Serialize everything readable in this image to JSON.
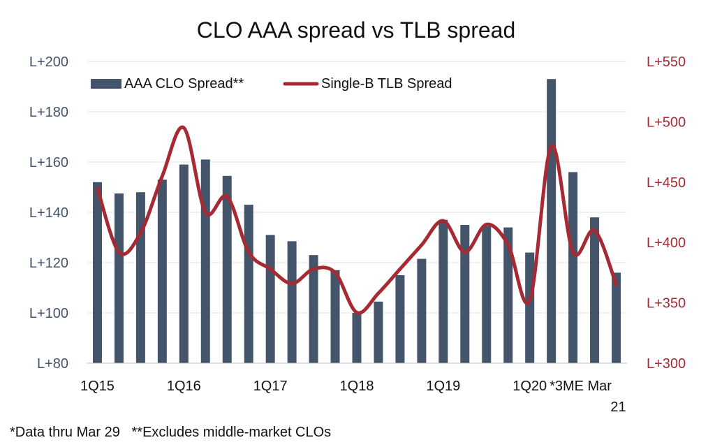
{
  "chart_data": {
    "type": "bar",
    "title": "CLO AAA spread vs TLB spread",
    "x": [
      "1Q15",
      "2Q15",
      "3Q15",
      "4Q15",
      "1Q16",
      "2Q16",
      "3Q16",
      "4Q16",
      "1Q17",
      "2Q17",
      "3Q17",
      "4Q17",
      "1Q18",
      "2Q18",
      "3Q18",
      "4Q18",
      "1Q19",
      "2Q19",
      "3Q19",
      "4Q19",
      "1Q20",
      "2Q20",
      "3Q20",
      "4Q20",
      "*3ME Mar 21"
    ],
    "x_tick_labels": [
      {
        "index": 0,
        "lines": [
          "1Q15"
        ]
      },
      {
        "index": 4,
        "lines": [
          "1Q16"
        ]
      },
      {
        "index": 8,
        "lines": [
          "1Q17"
        ]
      },
      {
        "index": 12,
        "lines": [
          "1Q18"
        ]
      },
      {
        "index": 16,
        "lines": [
          "1Q19"
        ]
      },
      {
        "index": 20,
        "lines": [
          "1Q20"
        ]
      },
      {
        "index": 24,
        "lines": [
          "*3ME Mar",
          "21"
        ]
      }
    ],
    "series": [
      {
        "name": "AAA CLO Spread**",
        "type": "bar",
        "axis": "left",
        "color": "#44546a",
        "values": [
          152,
          147.5,
          148,
          153,
          159,
          161,
          154.5,
          143,
          131,
          128.5,
          123,
          117,
          100,
          104.5,
          115,
          121.5,
          137,
          135,
          134.5,
          134,
          124,
          193,
          156,
          138,
          116
        ]
      },
      {
        "name": "Single-B TLB Spread",
        "type": "line",
        "axis": "right",
        "color": "#a52a34",
        "values": [
          445,
          392,
          408,
          455,
          495,
          425,
          438,
          392,
          378,
          366,
          378,
          375,
          342,
          358,
          378,
          398,
          418,
          392,
          415,
          398,
          352,
          480,
          392,
          410,
          365
        ]
      }
    ],
    "y_left": {
      "ylim": [
        80,
        200
      ],
      "ticks": [
        80,
        100,
        120,
        140,
        160,
        180,
        200
      ],
      "tick_labels": [
        "L+80",
        "L+100",
        "L+120",
        "L+140",
        "L+160",
        "L+180",
        "L+200"
      ]
    },
    "y_right": {
      "ylim": [
        300,
        550
      ],
      "ticks": [
        300,
        350,
        400,
        450,
        500,
        550
      ],
      "tick_labels": [
        "L+300",
        "L+350",
        "L+400",
        "L+450",
        "L+500",
        "L+550"
      ]
    },
    "grid": "horizontal",
    "legend": "top-left"
  },
  "footnote": "*Data thru Mar 29   **Excludes middle-market CLOs"
}
